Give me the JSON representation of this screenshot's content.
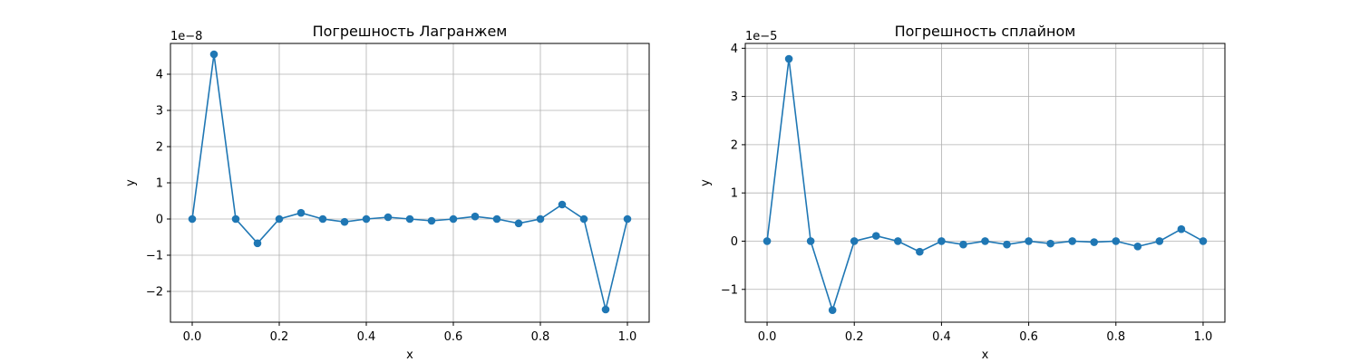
{
  "chart_data": [
    {
      "type": "line",
      "title": "Погрешность Лагранжем",
      "xlabel": "x",
      "ylabel": "y",
      "y_offset_label": "1e−8",
      "xlim": [
        -0.05,
        1.05
      ],
      "ylim": [
        -2.85,
        4.85
      ],
      "grid": true,
      "marker": "circle",
      "color": "#1f77b4",
      "x_ticks": [
        0.0,
        0.2,
        0.4,
        0.6,
        0.8,
        1.0
      ],
      "x_tick_labels": [
        "0.0",
        "0.2",
        "0.4",
        "0.6",
        "0.8",
        "1.0"
      ],
      "y_ticks": [
        -2,
        -1,
        0,
        1,
        2,
        3,
        4
      ],
      "y_tick_labels": [
        "−2",
        "−1",
        "0",
        "1",
        "2",
        "3",
        "4"
      ],
      "series": [
        {
          "x": [
            0.0,
            0.05,
            0.1,
            0.15,
            0.2,
            0.25,
            0.3,
            0.35,
            0.4,
            0.45,
            0.5,
            0.55,
            0.6,
            0.65,
            0.7,
            0.75,
            0.8,
            0.85,
            0.9,
            0.95,
            1.0
          ],
          "y": [
            0,
            4.55,
            0,
            -0.67,
            0,
            0.17,
            0,
            -0.08,
            0,
            0.05,
            0,
            -0.05,
            0,
            0.07,
            0,
            -0.12,
            0,
            0.4,
            0,
            -2.5,
            0
          ]
        }
      ]
    },
    {
      "type": "line",
      "title": "Погрешность сплайном",
      "xlabel": "x",
      "ylabel": "y",
      "y_offset_label": "1e−5",
      "xlim": [
        -0.05,
        1.05
      ],
      "ylim": [
        -1.68,
        4.1
      ],
      "grid": true,
      "marker": "circle",
      "color": "#1f77b4",
      "x_ticks": [
        0.0,
        0.2,
        0.4,
        0.6,
        0.8,
        1.0
      ],
      "x_tick_labels": [
        "0.0",
        "0.2",
        "0.4",
        "0.6",
        "0.8",
        "1.0"
      ],
      "y_ticks": [
        -1,
        0,
        1,
        2,
        3,
        4
      ],
      "y_tick_labels": [
        "−1",
        "0",
        "1",
        "2",
        "3",
        "4"
      ],
      "series": [
        {
          "x": [
            0.0,
            0.05,
            0.1,
            0.15,
            0.2,
            0.25,
            0.3,
            0.35,
            0.4,
            0.45,
            0.5,
            0.55,
            0.6,
            0.65,
            0.7,
            0.75,
            0.8,
            0.85,
            0.9,
            0.95,
            1.0
          ],
          "y": [
            0,
            3.78,
            0,
            -1.43,
            0,
            0.11,
            0,
            -0.22,
            0,
            -0.07,
            0,
            -0.07,
            0,
            -0.05,
            0,
            -0.02,
            0,
            -0.11,
            0,
            0.25,
            0
          ]
        }
      ]
    }
  ]
}
